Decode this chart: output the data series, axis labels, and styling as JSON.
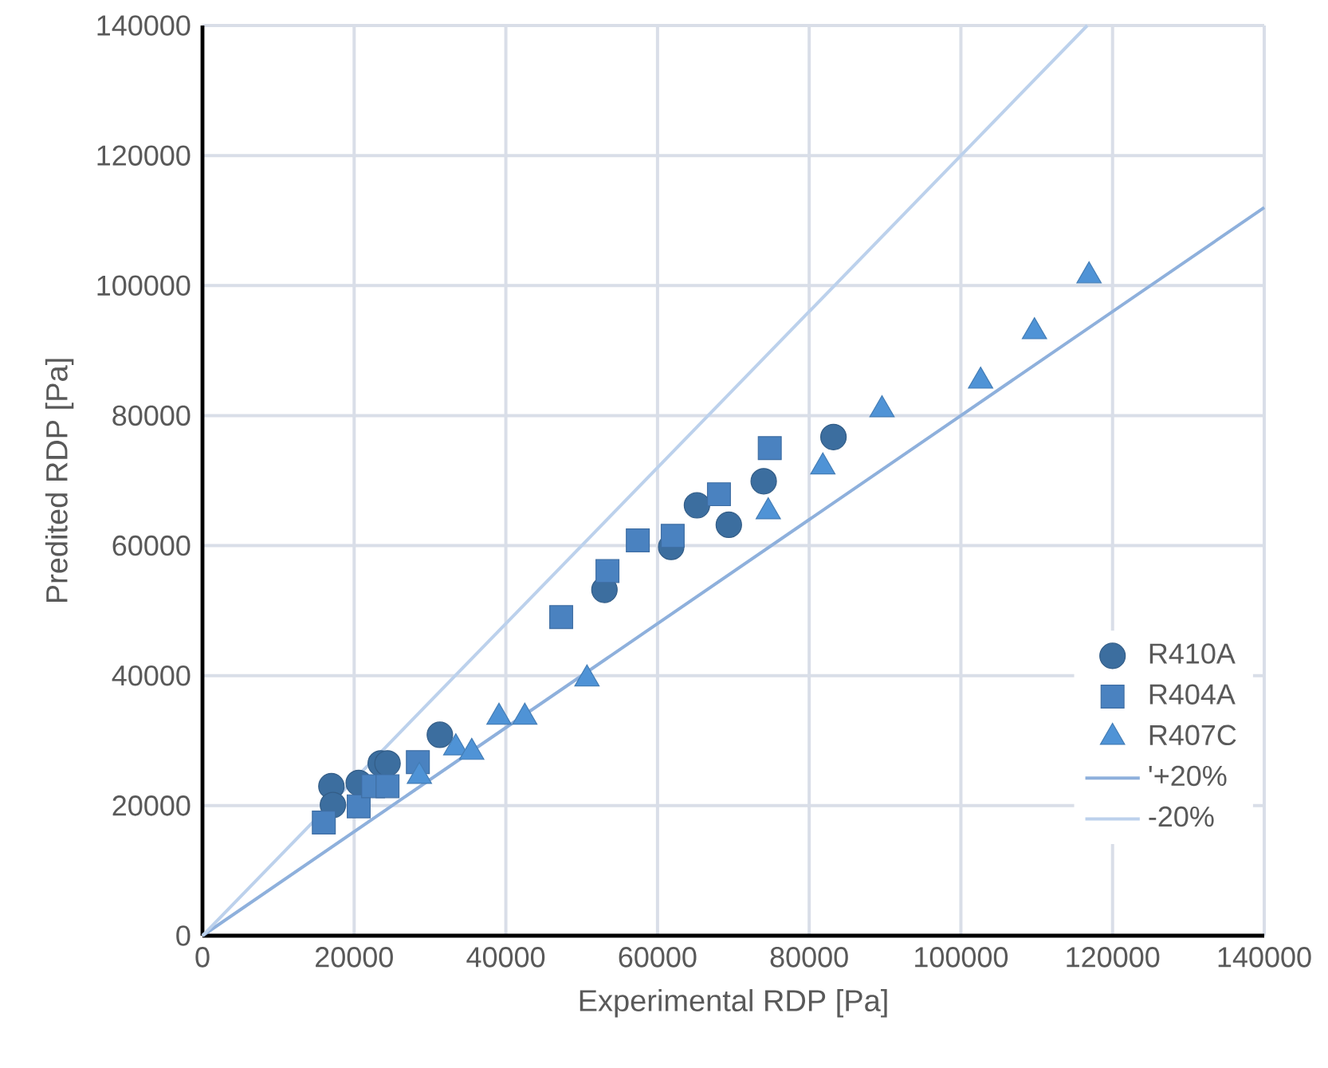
{
  "chart_data": {
    "type": "scatter",
    "xlabel": "Experimental RDP [Pa]",
    "ylabel": "Predited RDP [Pa]",
    "xlim": [
      0,
      140000
    ],
    "ylim": [
      0,
      140000
    ],
    "xticks": [
      0,
      20000,
      40000,
      60000,
      80000,
      100000,
      120000,
      140000
    ],
    "yticks": [
      0,
      20000,
      40000,
      60000,
      80000,
      100000,
      120000,
      140000
    ],
    "grid": true,
    "legend": "bottom right",
    "series": [
      {
        "name": "R410A",
        "marker": "circle",
        "color": "#3c6e9f",
        "x": [
          17000,
          17200,
          20600,
          23500,
          24400,
          31300,
          53000,
          61800,
          65200,
          69400,
          74000,
          83200
        ],
        "values": [
          23000,
          20100,
          23500,
          26500,
          26500,
          30900,
          53200,
          59800,
          66200,
          63200,
          69900,
          76700
        ]
      },
      {
        "name": "R404A",
        "marker": "square",
        "color": "#4a82c0",
        "x": [
          16000,
          20600,
          22500,
          24400,
          28400,
          47300,
          53400,
          57400,
          62000,
          68100,
          74800
        ],
        "values": [
          17400,
          19900,
          23000,
          23000,
          26700,
          49000,
          56100,
          60800,
          61500,
          67900,
          75000
        ]
      },
      {
        "name": "R407C",
        "marker": "triangle",
        "color": "#4f93d6",
        "x": [
          28600,
          33400,
          35500,
          39100,
          42500,
          50700,
          74600,
          81800,
          89600,
          102600,
          109700,
          116900
        ],
        "values": [
          24500,
          28900,
          28200,
          33600,
          33600,
          39500,
          65200,
          72100,
          80900,
          85300,
          92900,
          101500
        ]
      },
      {
        "name": "'+20%",
        "type": "line",
        "color": "#8eb0dc",
        "x": [
          0,
          140000
        ],
        "values": [
          0,
          112000
        ]
      },
      {
        "name": "-20%",
        "type": "line",
        "color": "#bcd1ec",
        "x": [
          0,
          116667
        ],
        "values": [
          0,
          140000
        ]
      }
    ]
  }
}
